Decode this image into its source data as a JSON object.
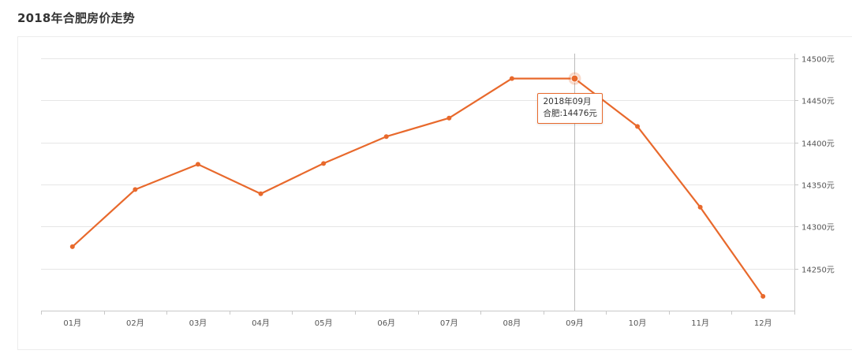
{
  "page": {
    "title": "2018年合肥房价走势"
  },
  "colors": {
    "line": "#e8692c",
    "grid": "#e6e6e6",
    "axis": "#c8c8c8",
    "tooltip_border": "#e8692c"
  },
  "chart_data": {
    "type": "line",
    "title": "2018年合肥房价走势",
    "categories": [
      "01月",
      "02月",
      "03月",
      "04月",
      "05月",
      "06月",
      "07月",
      "08月",
      "09月",
      "10月",
      "11月",
      "12月"
    ],
    "series": [
      {
        "name": "合肥",
        "values": [
          14276,
          14344,
          14374,
          14339,
          14375,
          14407,
          14429,
          14476,
          14476,
          14419,
          14323,
          14217
        ]
      }
    ],
    "y_axis": {
      "position": "right",
      "ticks": [
        14500,
        14450,
        14400,
        14350,
        14300,
        14250
      ],
      "tick_labels": [
        "14500元",
        "14450元",
        "14400元",
        "14350元",
        "14300元",
        "14250元"
      ],
      "ylim": [
        14200,
        14500
      ]
    },
    "grid": true,
    "legend": "none",
    "tooltip": {
      "category_index": 8,
      "title": "2018年09月",
      "series_label": "合肥:",
      "value_text": "14476元"
    }
  }
}
